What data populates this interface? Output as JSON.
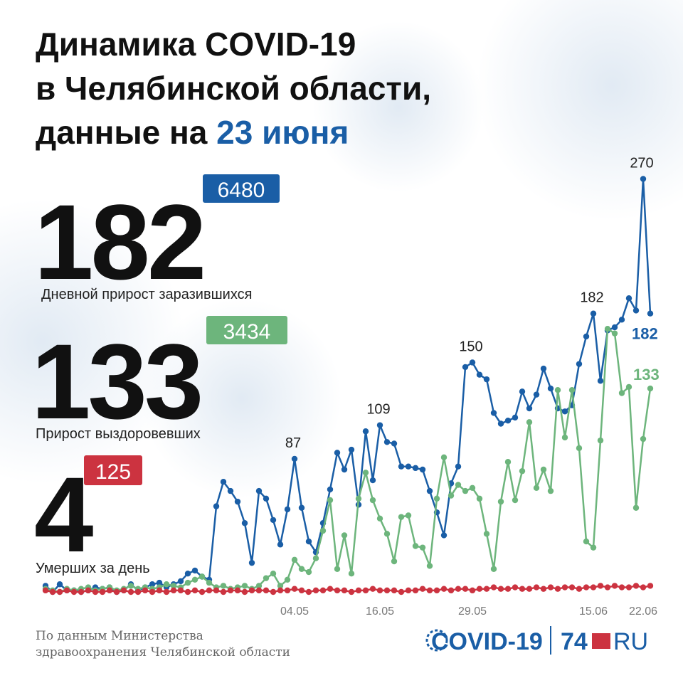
{
  "header": {
    "title_line1": "Динамика COVID-19",
    "title_line2": "в Челябинской области,",
    "title_line3_prefix": "данные на",
    "title_line3_date": "23 июня"
  },
  "summary": [
    {
      "value": 182,
      "total": 6480,
      "label": "Дневной прирост заразившихся"
    },
    {
      "value": 133,
      "total": 3434,
      "label": "Прирост выздоровевших"
    },
    {
      "value": 4,
      "total": 125,
      "label": "Умерших за день"
    }
  ],
  "chart_data": {
    "type": "line",
    "categories": [
      null,
      null,
      null,
      null,
      null,
      null,
      null,
      null,
      null,
      null,
      null,
      null,
      null,
      null,
      null,
      null,
      null,
      null,
      null,
      null,
      null,
      null,
      null,
      null,
      null,
      null,
      null,
      null,
      null,
      null,
      null,
      null,
      null,
      null,
      null,
      "04.05",
      null,
      null,
      null,
      null,
      null,
      null,
      null,
      null,
      null,
      null,
      null,
      "16.05",
      null,
      null,
      null,
      null,
      null,
      null,
      null,
      null,
      null,
      null,
      null,
      null,
      "29.05",
      null,
      null,
      null,
      null,
      null,
      null,
      null,
      null,
      null,
      null,
      null,
      null,
      null,
      null,
      null,
      null,
      "15.06",
      null,
      null,
      null,
      null,
      null,
      null,
      "22.06",
      null
    ],
    "series": [
      {
        "color": "#1a5ea6",
        "values": [
          4,
          0,
          5,
          1,
          1,
          0,
          1,
          3,
          2,
          3,
          0,
          1,
          5,
          1,
          3,
          5,
          6,
          3,
          5,
          7,
          12,
          14,
          10,
          8,
          56,
          72,
          66,
          59,
          45,
          19,
          66,
          61,
          47,
          31,
          54,
          87,
          55,
          33,
          26,
          45,
          67,
          91,
          80,
          93,
          57,
          105,
          73,
          109,
          98,
          97,
          82,
          82,
          81,
          80,
          66,
          52,
          37,
          71,
          82,
          147,
          150,
          142,
          139,
          117,
          110,
          112,
          114,
          131,
          120,
          129,
          146,
          133,
          120,
          118,
          122,
          149,
          167,
          182,
          138,
          171,
          173,
          178,
          192,
          184,
          270,
          182
        ]
      },
      {
        "color": "#6db57c",
        "values": [
          2,
          1,
          0,
          2,
          1,
          2,
          3,
          1,
          2,
          3,
          1,
          2,
          4,
          2,
          3,
          2,
          3,
          5,
          4,
          3,
          6,
          8,
          10,
          6,
          3,
          4,
          2,
          3,
          4,
          2,
          4,
          9,
          12,
          4,
          8,
          21,
          15,
          13,
          22,
          40,
          60,
          15,
          37,
          12,
          61,
          78,
          60,
          48,
          38,
          20,
          49,
          50,
          30,
          29,
          17,
          61,
          88,
          63,
          70,
          66,
          68,
          61,
          38,
          15,
          59,
          85,
          60,
          79,
          111,
          68,
          80,
          66,
          132,
          101,
          132,
          94,
          33,
          29,
          99,
          172,
          169,
          130,
          134,
          55,
          100,
          133
        ]
      },
      {
        "color": "#cc3340",
        "values": [
          1,
          0,
          0,
          1,
          0,
          0,
          1,
          0,
          0,
          1,
          0,
          1,
          0,
          0,
          1,
          0,
          1,
          0,
          1,
          1,
          0,
          1,
          0,
          1,
          1,
          0,
          1,
          1,
          0,
          1,
          1,
          1,
          0,
          1,
          1,
          2,
          1,
          0,
          1,
          1,
          2,
          1,
          1,
          0,
          1,
          1,
          2,
          1,
          1,
          1,
          0,
          1,
          1,
          2,
          1,
          1,
          2,
          1,
          2,
          2,
          1,
          2,
          2,
          3,
          2,
          2,
          3,
          2,
          2,
          3,
          2,
          3,
          2,
          3,
          3,
          2,
          3,
          3,
          4,
          3,
          4,
          3,
          3,
          4,
          3,
          4
        ]
      }
    ]
  },
  "footer": {
    "source_line1": "По данным Министерства",
    "source_line2": "здравоохранения Челябинской области",
    "logo_left": "COVID-19",
    "logo_num": "74",
    "logo_suffix": "RU"
  }
}
